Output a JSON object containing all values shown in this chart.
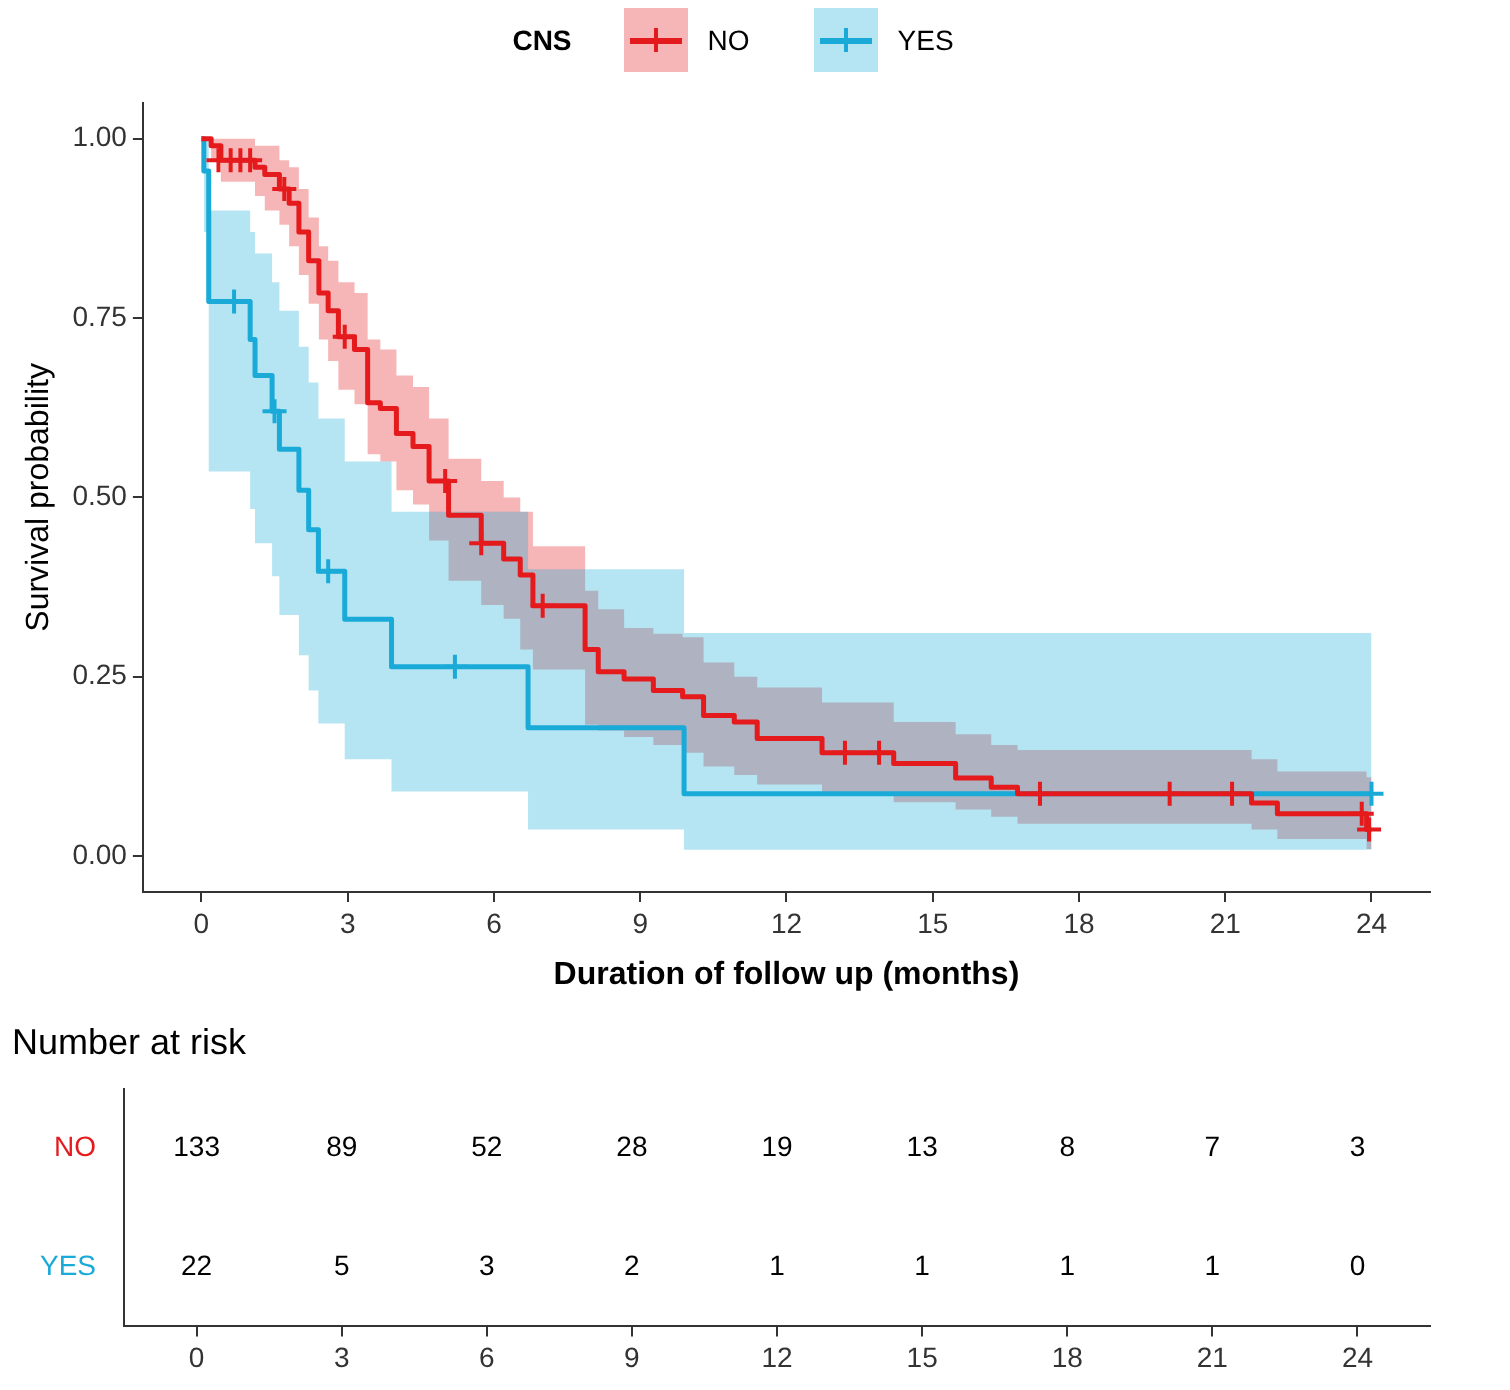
{
  "chart_data": [
    {
      "type": "step",
      "xlabel": "Duration of follow up (months)",
      "ylabel": "Survival probability",
      "legend_title": "CNS",
      "legend": "top",
      "xlim": [
        -1.2,
        25.2
      ],
      "ylim": [
        -0.05,
        1.05
      ],
      "xticks": [
        0,
        3,
        6,
        9,
        12,
        15,
        18,
        21,
        24
      ],
      "yticks": [
        {
          "value": 0,
          "label": "0.00"
        },
        {
          "value": 0.25,
          "label": "0.25"
        },
        {
          "value": 0.5,
          "label": "0.50"
        },
        {
          "value": 0.75,
          "label": "0.75"
        },
        {
          "value": 1,
          "label": "1.00"
        }
      ],
      "grid": false,
      "series": [
        {
          "name": "NO",
          "color": "#e41a1c",
          "x": [
            0,
            0.2,
            0.4,
            1.1,
            1.3,
            1.6,
            1.8,
            2.0,
            2.2,
            2.41,
            2.6,
            2.81,
            3.14,
            3.41,
            3.67,
            4.0,
            4.34,
            4.67,
            5.07,
            5.74,
            6.2,
            6.54,
            6.8,
            7.87,
            8.14,
            8.67,
            9.27,
            9.87,
            10.3,
            10.93,
            11.4,
            12.73,
            14.2,
            15.47,
            16.2,
            16.74,
            21.54,
            22.07,
            23.9,
            24
          ],
          "values": [
            1,
            0.99,
            0.97,
            0.96,
            0.95,
            0.93,
            0.91,
            0.87,
            0.83,
            0.785,
            0.76,
            0.724,
            0.706,
            0.632,
            0.624,
            0.589,
            0.571,
            0.523,
            0.475,
            0.436,
            0.414,
            0.392,
            0.349,
            0.288,
            0.257,
            0.247,
            0.231,
            0.222,
            0.196,
            0.187,
            0.164,
            0.144,
            0.129,
            0.109,
            0.096,
            0.087,
            0.074,
            0.059,
            0.037,
            0.037
          ],
          "lower": [
            1,
            0.97,
            0.94,
            0.92,
            0.9,
            0.88,
            0.85,
            0.81,
            0.77,
            0.72,
            0.69,
            0.65,
            0.63,
            0.56,
            0.55,
            0.51,
            0.49,
            0.44,
            0.384,
            0.35,
            0.331,
            0.288,
            0.26,
            0.183,
            0.175,
            0.166,
            0.155,
            0.144,
            0.125,
            0.113,
            0.1,
            0.087,
            0.075,
            0.065,
            0.055,
            0.045,
            0.037,
            0.024,
            0.01,
            0.01
          ],
          "upper": [
            1,
            1,
            1,
            0.99,
            0.99,
            0.97,
            0.96,
            0.93,
            0.89,
            0.85,
            0.83,
            0.8,
            0.785,
            0.72,
            0.706,
            0.67,
            0.654,
            0.61,
            0.554,
            0.523,
            0.5,
            0.48,
            0.432,
            0.37,
            0.344,
            0.318,
            0.31,
            0.305,
            0.27,
            0.25,
            0.235,
            0.214,
            0.187,
            0.17,
            0.155,
            0.148,
            0.135,
            0.118,
            0.11,
            0.11
          ]
        },
        {
          "name": "YES",
          "color": "#1aaad8",
          "x": [
            0,
            0.05,
            0.15,
            1.0,
            1.1,
            1.45,
            1.6,
            2.0,
            2.2,
            2.4,
            2.94,
            3.9,
            6.7,
            9.9,
            24
          ],
          "values": [
            1,
            0.955,
            0.773,
            0.72,
            0.67,
            0.62,
            0.567,
            0.51,
            0.455,
            0.397,
            0.33,
            0.264,
            0.179,
            0.087,
            0.087
          ],
          "lower": [
            null,
            0.87,
            0.536,
            0.484,
            0.436,
            0.39,
            0.336,
            0.28,
            0.231,
            0.185,
            0.135,
            0.09,
            0.037,
            0.009,
            0.009
          ],
          "upper": [
            null,
            1,
            0.9,
            0.87,
            0.84,
            0.8,
            0.76,
            0.71,
            0.66,
            0.61,
            0.55,
            0.48,
            0.4,
            0.311,
            0.311
          ]
        },
        {
          "type": "scatter",
          "marker": "cross",
          "color": "#e41a1c",
          "x": [
            0.35,
            0.6,
            0.8,
            1.0,
            1.7,
            2.94,
            5.0,
            5.74,
            7.0,
            13.2,
            13.9,
            17.2,
            19.86,
            21.14,
            23.8,
            23.95
          ],
          "values": [
            0.97,
            0.97,
            0.97,
            0.97,
            0.93,
            0.724,
            0.523,
            0.436,
            0.349,
            0.144,
            0.144,
            0.087,
            0.087,
            0.087,
            0.059,
            0.037
          ]
        },
        {
          "type": "scatter",
          "marker": "cross",
          "color": "#1aaad8",
          "x": [
            0.67,
            1.5,
            2.6,
            5.2,
            24
          ],
          "values": [
            0.773,
            0.62,
            0.397,
            0.264,
            0.087
          ]
        }
      ]
    },
    {
      "type": "heatmap",
      "title": "Number at risk",
      "data_labels": true,
      "categories": [
        "0",
        "3",
        "6",
        "9",
        "12",
        "15",
        "18",
        "21",
        "24"
      ],
      "y_categories": [
        "NO",
        "YES"
      ],
      "cells": [
        [
          133,
          89,
          52,
          28,
          19,
          13,
          8,
          7,
          3
        ],
        [
          22,
          5,
          3,
          2,
          1,
          1,
          1,
          1,
          0
        ]
      ]
    }
  ]
}
